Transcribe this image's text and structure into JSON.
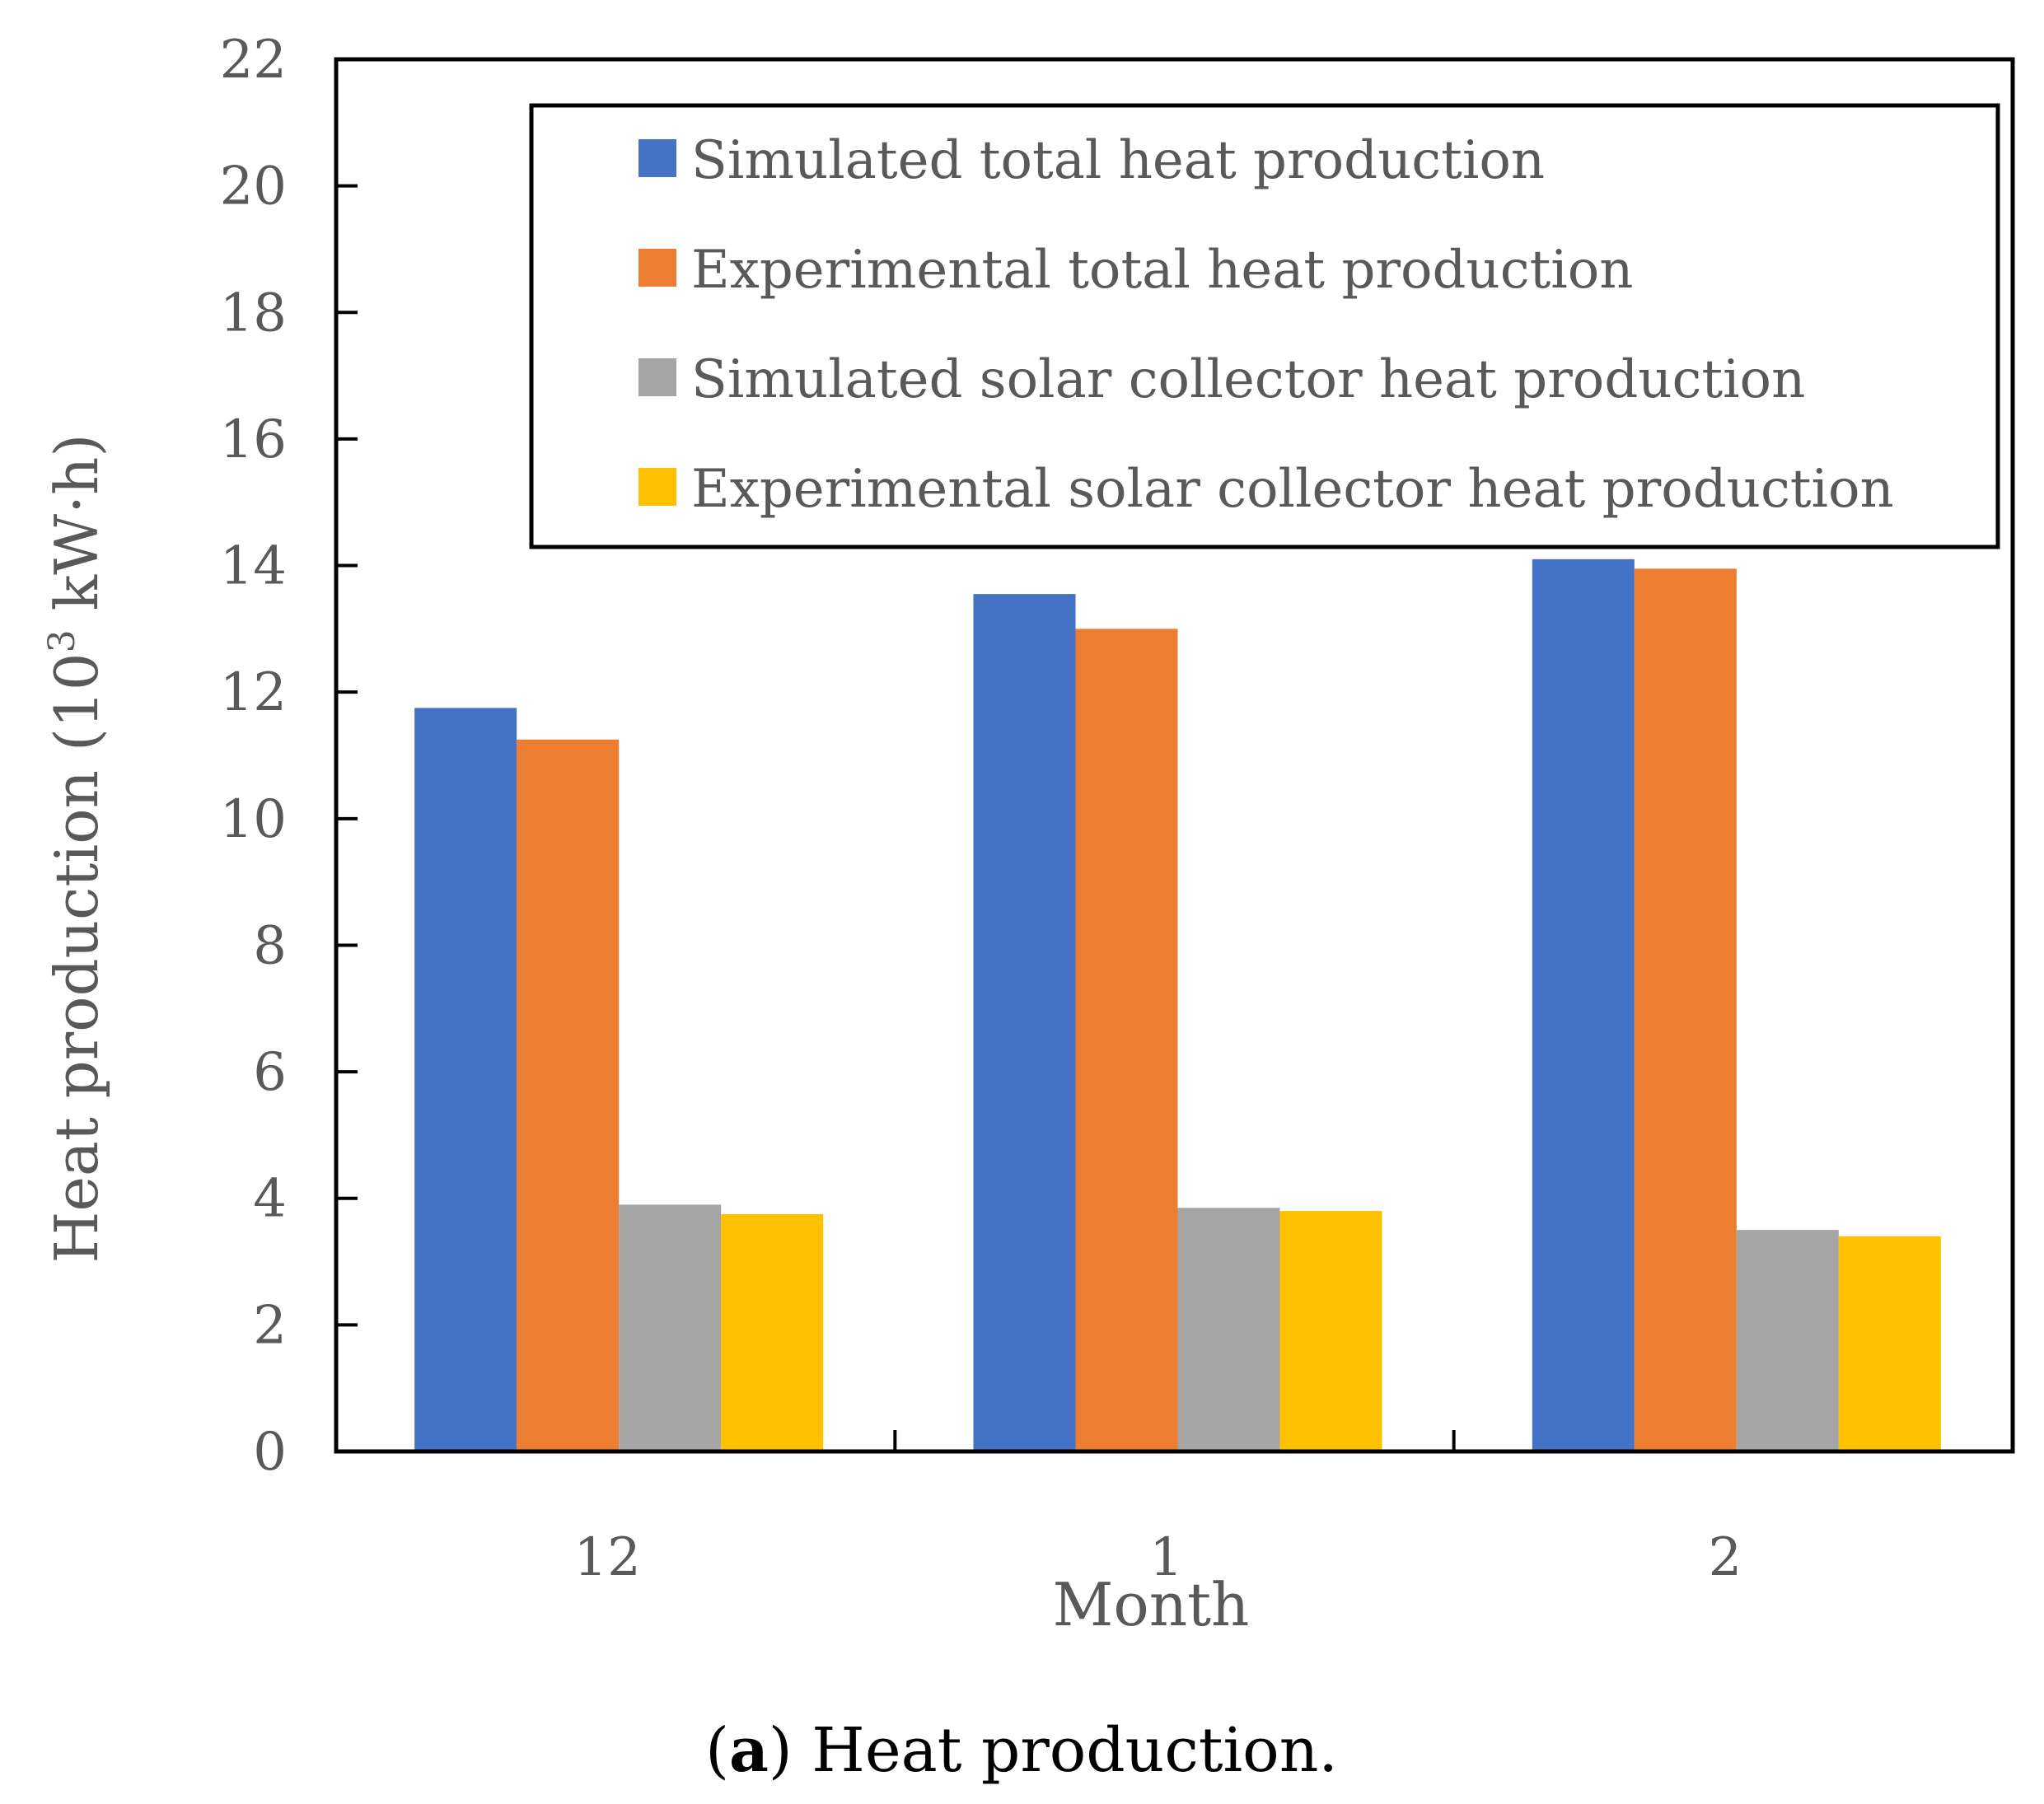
{
  "chart_data": {
    "type": "bar",
    "title": "",
    "xlabel": "Month",
    "ylabel": "Heat production (10",
    "ylabel_sup": "3",
    "ylabel_unit": " kW·h)",
    "ylim": [
      0,
      22
    ],
    "yticks": [
      0,
      2,
      4,
      6,
      8,
      10,
      12,
      14,
      16,
      18,
      20,
      22
    ],
    "categories": [
      "12",
      "1",
      "2"
    ],
    "series": [
      {
        "name": "Simulated total heat production",
        "color": "#4472C4",
        "values": [
          11.75,
          13.55,
          14.1
        ]
      },
      {
        "name": "Experimental total heat production",
        "color": "#ED7D31",
        "values": [
          11.25,
          13.0,
          13.95
        ]
      },
      {
        "name": "Simulated solar collector heat production",
        "color": "#A5A5A5",
        "values": [
          3.9,
          3.85,
          3.5
        ]
      },
      {
        "name": "Experimental solar collector heat production",
        "color": "#FFC000",
        "values": [
          3.75,
          3.8,
          3.4
        ]
      }
    ],
    "legend_position": "top-right",
    "grid": false
  },
  "caption": {
    "open": "(",
    "letter": "a",
    "rest": ") Heat production."
  }
}
